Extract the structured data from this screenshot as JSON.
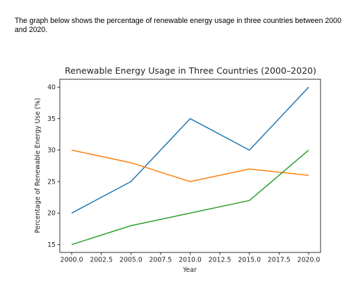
{
  "intro_text": "The graph below shows the percentage of renewable energy usage in three countries between 2000 and 2020.",
  "chart_data": {
    "type": "line",
    "title": "Renewable Energy Usage in Three Countries (2000–2020)",
    "xlabel": "Year",
    "ylabel": "Percentage of Renewable Energy Use (%)",
    "x": [
      2000,
      2005,
      2010,
      2015,
      2020
    ],
    "xticks": [
      "2000.0",
      "2002.5",
      "2005.0",
      "2007.5",
      "2010.0",
      "2012.5",
      "2015.0",
      "2017.5",
      "2020.0"
    ],
    "yticks": [
      "15",
      "20",
      "25",
      "30",
      "35",
      "40"
    ],
    "xlim": [
      1999,
      2021
    ],
    "ylim": [
      13.75,
      41.25
    ],
    "series": [
      {
        "values": [
          20,
          25,
          35,
          30,
          40
        ],
        "color": "#1f77b4"
      },
      {
        "values": [
          30,
          28,
          25,
          27,
          26
        ],
        "color": "#ff7f0e"
      },
      {
        "values": [
          15,
          18,
          20,
          22,
          30
        ],
        "color": "#2ca02c"
      }
    ],
    "grid": false,
    "legend": "none"
  }
}
